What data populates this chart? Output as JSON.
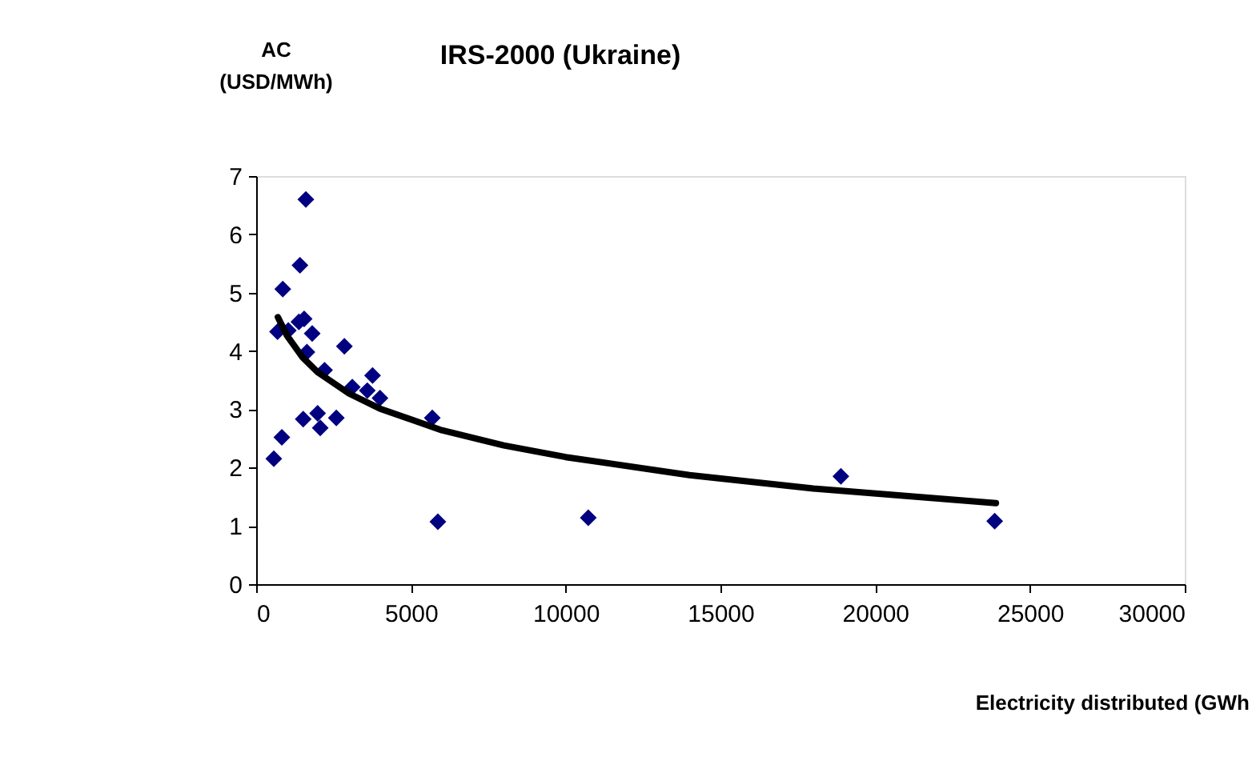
{
  "chart_data": {
    "type": "scatter",
    "title": "IRS-2000 (Ukraine)",
    "xlabel": "Electricity distributed (GWh",
    "ylabel": "AC\n(USD/MWh)",
    "xlim": [
      0,
      30000
    ],
    "xticks": [
      0,
      5000,
      10000,
      15000,
      20000,
      25000,
      30000
    ],
    "ylim": [
      0,
      7
    ],
    "yticks": [
      0,
      1,
      2,
      3,
      4,
      5,
      6,
      7
    ],
    "grid": false,
    "series": [
      {
        "marker": "diamond",
        "color": "#000080",
        "x": [
          570,
          830,
          860,
          690,
          1040,
          1380,
          1415,
          1605,
          1550,
          1810,
          1640,
          1520,
          1985,
          2070,
          2590,
          2210,
          2850,
          3105,
          3760,
          4000,
          3590,
          5690,
          5870,
          10730,
          18890,
          23860
        ],
        "values": [
          2.15,
          2.52,
          5.06,
          4.33,
          4.35,
          4.5,
          5.47,
          6.6,
          4.55,
          4.3,
          3.98,
          2.83,
          2.93,
          2.68,
          2.85,
          3.67,
          4.08,
          3.38,
          3.58,
          3.19,
          3.32,
          2.85,
          1.07,
          1.14,
          1.85,
          1.08
        ]
      },
      {
        "type": "line",
        "color": "#000000",
        "line_style": "solid",
        "x": [
          700,
          1000,
          1500,
          2000,
          3000,
          4000,
          6000,
          8000,
          10000,
          14000,
          18000,
          23900
        ],
        "values": [
          4.58,
          4.26,
          3.89,
          3.63,
          3.27,
          3.01,
          2.64,
          2.38,
          2.18,
          1.87,
          1.64,
          1.39
        ]
      }
    ]
  }
}
